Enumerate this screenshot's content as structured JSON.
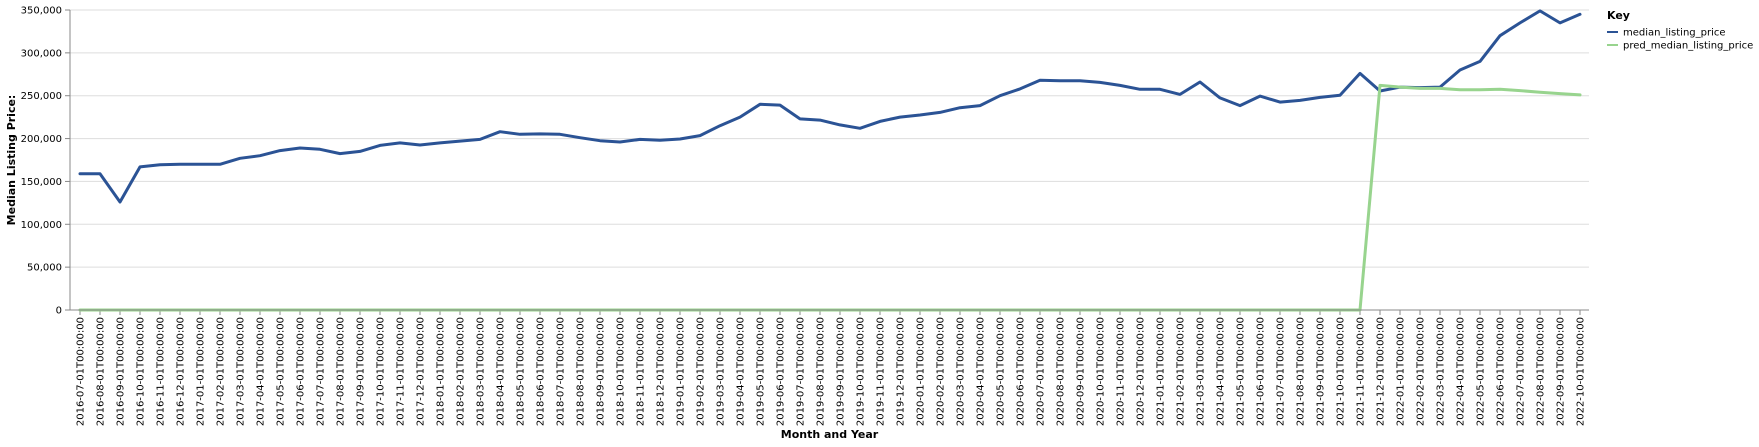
{
  "chart_data": {
    "type": "line",
    "xlabel": "Month and Year",
    "ylabel": "Median Listing Price:",
    "ylim": [
      0,
      350000
    ],
    "yticks": [
      0,
      50000,
      100000,
      150000,
      200000,
      250000,
      300000,
      350000
    ],
    "ytick_labels": [
      "0",
      "50,000",
      "100,000",
      "150,000",
      "200,000",
      "250,000",
      "300,000",
      "350,000"
    ],
    "grid": true,
    "legend": {
      "title": "Key",
      "position": "top-right"
    },
    "x": [
      "2016-07-01T00:00:00",
      "2016-08-01T00:00:00",
      "2016-09-01T00:00:00",
      "2016-10-01T00:00:00",
      "2016-11-01T00:00:00",
      "2016-12-01T00:00:00",
      "2017-01-01T00:00:00",
      "2017-02-01T00:00:00",
      "2017-03-01T00:00:00",
      "2017-04-01T00:00:00",
      "2017-05-01T00:00:00",
      "2017-06-01T00:00:00",
      "2017-07-01T00:00:00",
      "2017-08-01T00:00:00",
      "2017-09-01T00:00:00",
      "2017-10-01T00:00:00",
      "2017-11-01T00:00:00",
      "2017-12-01T00:00:00",
      "2018-01-01T00:00:00",
      "2018-02-01T00:00:00",
      "2018-03-01T00:00:00",
      "2018-04-01T00:00:00",
      "2018-05-01T00:00:00",
      "2018-06-01T00:00:00",
      "2018-07-01T00:00:00",
      "2018-08-01T00:00:00",
      "2018-09-01T00:00:00",
      "2018-10-01T00:00:00",
      "2018-11-01T00:00:00",
      "2018-12-01T00:00:00",
      "2019-01-01T00:00:00",
      "2019-02-01T00:00:00",
      "2019-03-01T00:00:00",
      "2019-04-01T00:00:00",
      "2019-05-01T00:00:00",
      "2019-06-01T00:00:00",
      "2019-07-01T00:00:00",
      "2019-08-01T00:00:00",
      "2019-09-01T00:00:00",
      "2019-10-01T00:00:00",
      "2019-11-01T00:00:00",
      "2019-12-01T00:00:00",
      "2020-01-01T00:00:00",
      "2020-02-01T00:00:00",
      "2020-03-01T00:00:00",
      "2020-04-01T00:00:00",
      "2020-05-01T00:00:00",
      "2020-06-01T00:00:00",
      "2020-07-01T00:00:00",
      "2020-08-01T00:00:00",
      "2020-09-01T00:00:00",
      "2020-10-01T00:00:00",
      "2020-11-01T00:00:00",
      "2020-12-01T00:00:00",
      "2021-01-01T00:00:00",
      "2021-02-01T00:00:00",
      "2021-03-01T00:00:00",
      "2021-04-01T00:00:00",
      "2021-05-01T00:00:00",
      "2021-06-01T00:00:00",
      "2021-07-01T00:00:00",
      "2021-08-01T00:00:00",
      "2021-09-01T00:00:00",
      "2021-10-01T00:00:00",
      "2021-11-01T00:00:00",
      "2021-12-01T00:00:00",
      "2022-01-01T00:00:00",
      "2022-02-01T00:00:00",
      "2022-03-01T00:00:00",
      "2022-04-01T00:00:00",
      "2022-05-01T00:00:00",
      "2022-06-01T00:00:00",
      "2022-07-01T00:00:00",
      "2022-08-01T00:00:00",
      "2022-09-01T00:00:00",
      "2022-10-01T00:00:00"
    ],
    "series": [
      {
        "name": "median_listing_price",
        "color": "#2b5395",
        "values": [
          159000,
          159000,
          126000,
          167000,
          169500,
          170000,
          170000,
          170000,
          177000,
          180000,
          186000,
          189000,
          187500,
          182500,
          185000,
          192000,
          195000,
          192500,
          195000,
          197000,
          199000,
          208000,
          205000,
          205500,
          205000,
          201000,
          197500,
          196000,
          199000,
          198000,
          199500,
          203500,
          215000,
          225000,
          240000,
          239000,
          223000,
          221500,
          216000,
          212000,
          220000,
          225000,
          227500,
          230500,
          236000,
          238500,
          250000,
          258000,
          268000,
          267500,
          267500,
          265500,
          262000,
          257500,
          257500,
          251500,
          266000,
          247500,
          238500,
          249500,
          242500,
          244500,
          248000,
          250500,
          276000,
          255500,
          260000,
          259500,
          260000,
          280000,
          290000,
          320000,
          335000,
          349000,
          335000,
          345000
        ]
      },
      {
        "name": "pred_median_listing_price",
        "color": "#98d48e",
        "values": [
          0,
          0,
          0,
          0,
          0,
          0,
          0,
          0,
          0,
          0,
          0,
          0,
          0,
          0,
          0,
          0,
          0,
          0,
          0,
          0,
          0,
          0,
          0,
          0,
          0,
          0,
          0,
          0,
          0,
          0,
          0,
          0,
          0,
          0,
          0,
          0,
          0,
          0,
          0,
          0,
          0,
          0,
          0,
          0,
          0,
          0,
          0,
          0,
          0,
          0,
          0,
          0,
          0,
          0,
          0,
          0,
          0,
          0,
          0,
          0,
          0,
          0,
          0,
          0,
          0,
          262000,
          260000,
          258500,
          258500,
          257000,
          257000,
          257500,
          256000,
          254000,
          252500,
          251000
        ]
      }
    ]
  }
}
